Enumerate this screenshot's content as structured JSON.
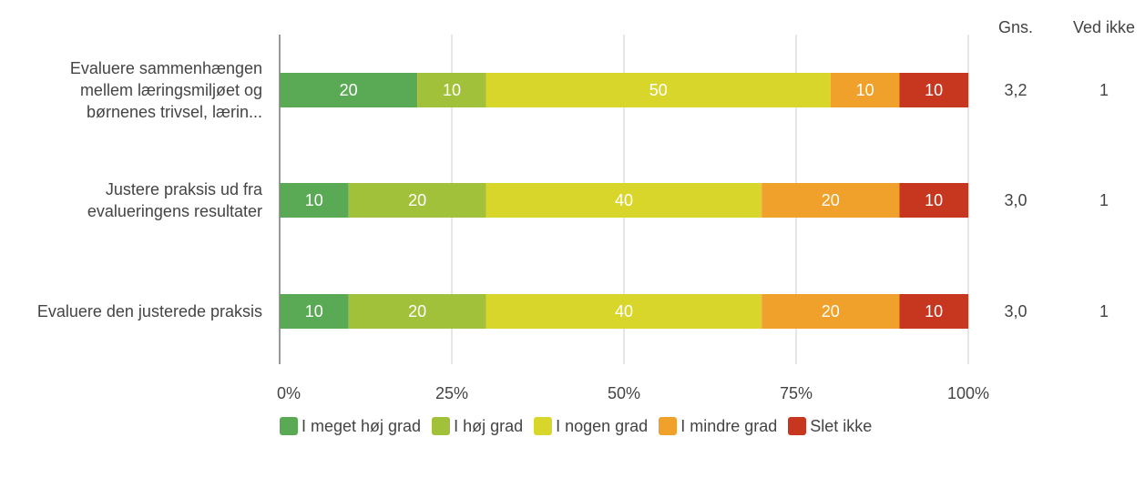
{
  "chart_data": {
    "type": "stacked_barh",
    "categories": [
      "Evaluere sammenhængen mellem læringsmiljøet og børnenes trivsel, lærin...",
      "Justere praksis ud fra evalueringens resultater",
      "Evaluere den justerede praksis"
    ],
    "series": [
      {
        "name": "I meget høj grad",
        "color": "#5aa954",
        "values": [
          20,
          10,
          10
        ]
      },
      {
        "name": "I høj grad",
        "color": "#a1c13b",
        "values": [
          10,
          20,
          20
        ]
      },
      {
        "name": "I nogen grad",
        "color": "#d8d62a",
        "values": [
          50,
          40,
          40
        ]
      },
      {
        "name": "I mindre grad",
        "color": "#f0a12b",
        "values": [
          10,
          20,
          20
        ]
      },
      {
        "name": "Slet ikke",
        "color": "#c7361f",
        "values": [
          10,
          10,
          10
        ]
      }
    ],
    "xlim": [
      0,
      100
    ],
    "xticks": [
      {
        "value": 0,
        "label": "0%"
      },
      {
        "value": 25,
        "label": "25%"
      },
      {
        "value": 50,
        "label": "50%"
      },
      {
        "value": 75,
        "label": "75%"
      },
      {
        "value": 100,
        "label": "100%"
      }
    ],
    "grid": true,
    "extra_columns": [
      {
        "name": "Gns.",
        "values": [
          3.2,
          3.0,
          3.0
        ],
        "value_labels": [
          "3,2",
          "3,0",
          "3,0"
        ]
      },
      {
        "name": "Ved ikke",
        "values": [
          1,
          1,
          1
        ]
      }
    ]
  }
}
